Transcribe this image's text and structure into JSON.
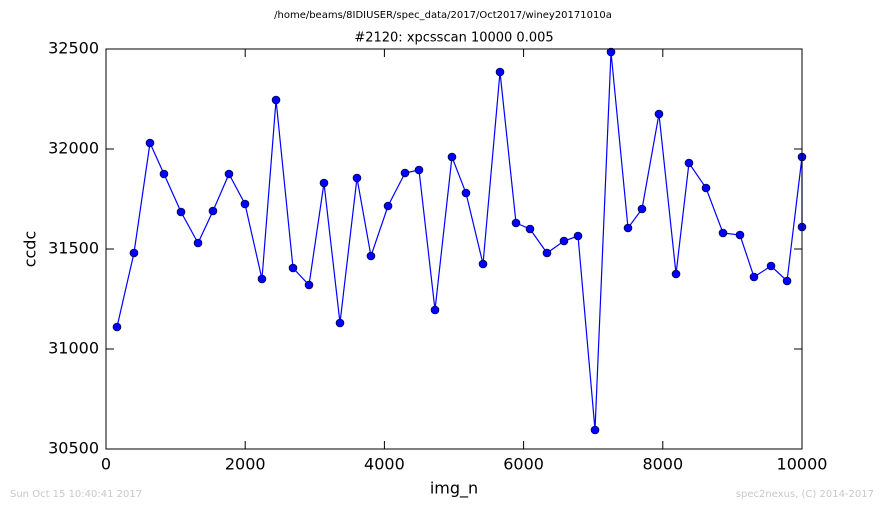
{
  "chart_data": {
    "type": "line",
    "subtitle": "/home/beams/8IDIUSER/spec_data/2017/Oct2017/winey20171010a",
    "title": "#2120: xpcsscan 10000 0.005",
    "x_label": "img_n",
    "y_label": "ccdc",
    "x": [
      158,
      402,
      632,
      833,
      1078,
      1322,
      1537,
      1767,
      1997,
      2241,
      2443,
      2687,
      2917,
      3132,
      3362,
      3606,
      3807,
      4052,
      4296,
      4497,
      4727,
      4971,
      5172,
      5417,
      5661,
      5891,
      6092,
      6336,
      6580,
      6782,
      7026,
      7256,
      7500,
      7701,
      7945,
      8190,
      8376,
      8621,
      8865,
      9109,
      9310,
      9555,
      9785,
      10000,
      10000
    ],
    "series": [
      {
        "color": "#0000ff",
        "marker_color": "#0000ff",
        "values": [
          31110,
          31480,
          32030,
          31875,
          31685,
          31530,
          31690,
          31875,
          31725,
          31350,
          32245,
          31405,
          31320,
          31830,
          31130,
          31855,
          31465,
          31715,
          31880,
          31895,
          31195,
          31960,
          31780,
          31425,
          32385,
          31630,
          31600,
          31480,
          31540,
          31565,
          30595,
          32485,
          31605,
          31700,
          32175,
          31375,
          31930,
          31805,
          31580,
          31570,
          31360,
          31415,
          31340,
          31960,
          31610
        ]
      }
    ],
    "xlim": [
      0,
      10000
    ],
    "xticks": [
      0,
      2000,
      4000,
      6000,
      8000,
      10000
    ],
    "ylim": [
      30500,
      32500
    ],
    "yticks": [
      30500,
      31000,
      31500,
      32000,
      32500
    ],
    "grid": false
  },
  "footer": {
    "left": "Sun Oct 15 10:40:41 2017",
    "right": "spec2nexus, (C) 2014-2017"
  }
}
